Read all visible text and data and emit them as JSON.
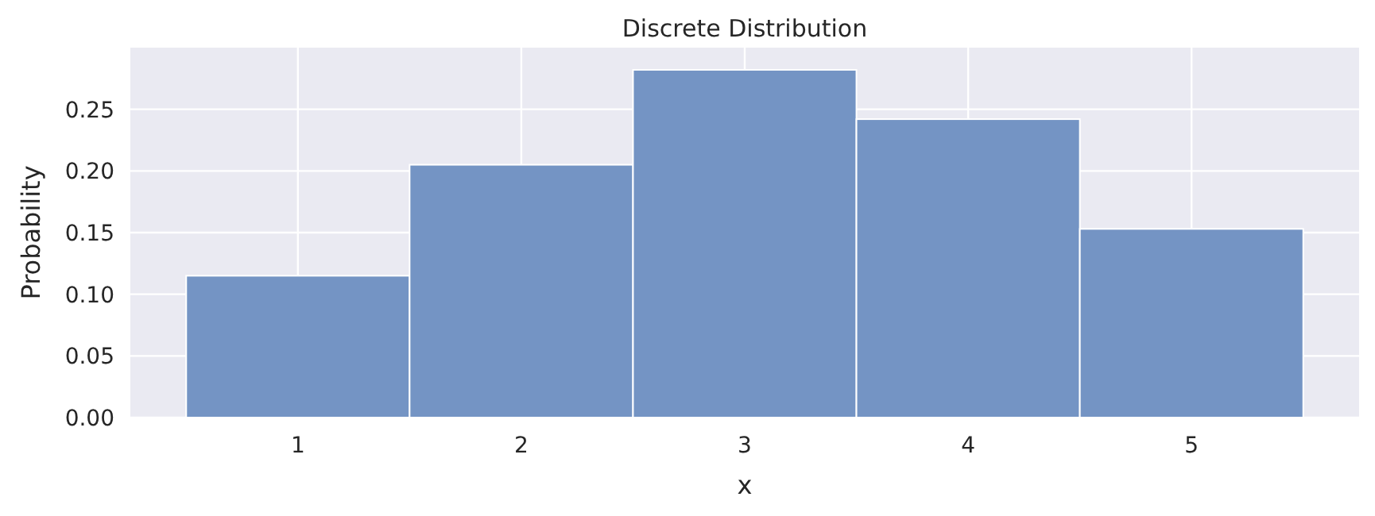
{
  "chart_data": {
    "type": "histogram",
    "title": "Discrete Distribution",
    "xlabel": "x",
    "ylabel": "Probability",
    "bins": [
      0.5,
      1.5,
      2.5,
      3.5,
      4.5,
      5.5
    ],
    "values": [
      0.115,
      0.205,
      0.282,
      0.242,
      0.153
    ],
    "color": "#7494c4",
    "xlim": [
      0.25,
      5.75
    ],
    "xticks": [
      1,
      2,
      3,
      4,
      5
    ],
    "ylim": [
      0,
      0.3
    ],
    "yticks": [
      {
        "value": 0,
        "label": "0.00"
      },
      {
        "value": 0.05,
        "label": "0.05"
      },
      {
        "value": 0.1,
        "label": "0.10"
      },
      {
        "value": 0.15,
        "label": "0.15"
      },
      {
        "value": 0.2,
        "label": "0.20"
      },
      {
        "value": 0.25,
        "label": "0.25"
      }
    ],
    "grid": true
  }
}
